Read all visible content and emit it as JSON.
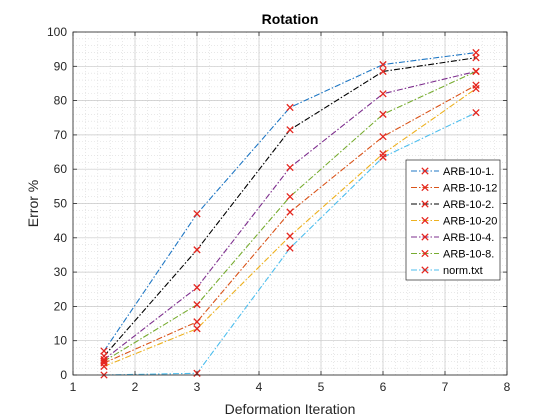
{
  "chart_data": {
    "type": "line",
    "title": "Rotation",
    "xlabel": "Deformation Iteration",
    "ylabel": "Error %",
    "xlim": [
      1,
      8
    ],
    "ylim": [
      0,
      100
    ],
    "xticks": [
      "1",
      "2",
      "3",
      "4",
      "5",
      "6",
      "7",
      "8"
    ],
    "yticks": [
      "0",
      "10",
      "20",
      "30",
      "40",
      "50",
      "60",
      "70",
      "80",
      "90",
      "100"
    ],
    "grid": "on (major and minor)",
    "legend_position": "right",
    "marker_color": "#e5261f",
    "x": [
      1.5,
      3,
      4.5,
      6,
      7.5
    ],
    "series": [
      {
        "name": "ARB-10-1.",
        "color": "#1f77c4",
        "values": [
          7,
          47,
          78,
          90.5,
          94
        ]
      },
      {
        "name": "ARB-10-12",
        "color": "#d95319",
        "values": [
          3.5,
          15.5,
          47.5,
          69.5,
          84.5
        ]
      },
      {
        "name": "ARB-10-2.",
        "color": "#000000",
        "values": [
          5.5,
          36.5,
          71.5,
          88.5,
          92.5
        ]
      },
      {
        "name": "ARB-10-20",
        "color": "#edb120",
        "values": [
          2.5,
          13.5,
          40.5,
          64.5,
          83.5
        ]
      },
      {
        "name": "ARB-10-4.",
        "color": "#7e2f8e",
        "values": [
          4.5,
          25.5,
          60.5,
          82,
          88.5
        ]
      },
      {
        "name": "ARB-10-8.",
        "color": "#77ac30",
        "values": [
          4,
          20.5,
          52,
          76,
          88.5
        ]
      },
      {
        "name": "norm.txt",
        "color": "#4dbeee",
        "values": [
          0,
          0.5,
          37,
          63.5,
          76.5
        ]
      }
    ]
  }
}
